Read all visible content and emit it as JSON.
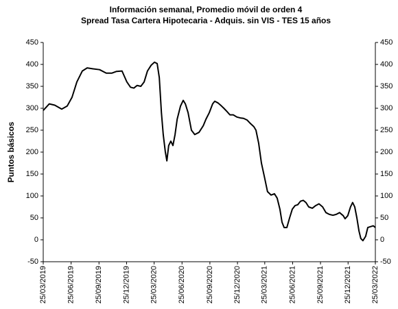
{
  "chart_data": {
    "type": "line",
    "title": "Información semanal, Promedio móvil de orden 4",
    "subtitle": "Spread Tasa Cartera Hipotecaria - Adquis. sin VIS -  TES 15 años",
    "ylabel": "Puntos básicos",
    "ylim": [
      -50,
      450
    ],
    "yticks": [
      -50,
      0,
      50,
      100,
      150,
      200,
      250,
      300,
      350,
      400,
      450
    ],
    "y2lim": [
      -50,
      450
    ],
    "y2ticks": [
      -50,
      0,
      50,
      100,
      150,
      200,
      250,
      300,
      350,
      400,
      450
    ],
    "xlim": [
      "2019-03-25",
      "2022-03-25"
    ],
    "xticks": [
      {
        "value": "2019-03-25",
        "label": "25/03/2019"
      },
      {
        "value": "2019-06-25",
        "label": "25/06/2019"
      },
      {
        "value": "2019-09-25",
        "label": "25/09/2019"
      },
      {
        "value": "2019-12-25",
        "label": "25/12/2019"
      },
      {
        "value": "2020-03-25",
        "label": "25/03/2020"
      },
      {
        "value": "2020-06-25",
        "label": "25/06/2020"
      },
      {
        "value": "2020-09-25",
        "label": "25/09/2020"
      },
      {
        "value": "2020-12-25",
        "label": "25/12/2020"
      },
      {
        "value": "2021-03-25",
        "label": "25/03/2021"
      },
      {
        "value": "2021-06-25",
        "label": "25/06/2021"
      },
      {
        "value": "2021-09-25",
        "label": "25/09/2021"
      },
      {
        "value": "2021-12-25",
        "label": "25/12/2021"
      },
      {
        "value": "2022-03-25",
        "label": "25/03/2022"
      }
    ],
    "x": [
      "2019-03-25",
      "2019-04-14",
      "2019-05-02",
      "2019-05-25",
      "2019-06-12",
      "2019-06-28",
      "2019-07-14",
      "2019-08-01",
      "2019-08-17",
      "2019-09-04",
      "2019-09-27",
      "2019-10-19",
      "2019-11-06",
      "2019-11-22",
      "2019-12-10",
      "2019-12-26",
      "2020-01-07",
      "2020-01-18",
      "2020-01-29",
      "2020-02-10",
      "2020-02-21",
      "2020-03-03",
      "2020-03-15",
      "2020-03-26",
      "2020-04-04",
      "2020-04-11",
      "2020-04-18",
      "2020-04-24",
      "2020-05-01",
      "2020-05-06",
      "2020-05-12",
      "2020-05-19",
      "2020-05-26",
      "2020-06-02",
      "2020-06-09",
      "2020-06-20",
      "2020-06-29",
      "2020-07-06",
      "2020-07-15",
      "2020-07-26",
      "2020-08-06",
      "2020-08-20",
      "2020-09-03",
      "2020-09-12",
      "2020-09-23",
      "2020-10-04",
      "2020-10-11",
      "2020-10-22",
      "2020-11-01",
      "2020-11-10",
      "2020-11-21",
      "2020-11-30",
      "2020-12-11",
      "2020-12-23",
      "2021-01-03",
      "2021-01-14",
      "2021-01-26",
      "2021-02-06",
      "2021-02-17",
      "2021-02-24",
      "2021-03-05",
      "2021-03-14",
      "2021-03-25",
      "2021-04-03",
      "2021-04-15",
      "2021-04-26",
      "2021-05-05",
      "2021-05-14",
      "2021-05-21",
      "2021-05-28",
      "2021-06-06",
      "2021-06-15",
      "2021-06-24",
      "2021-07-03",
      "2021-07-12",
      "2021-07-21",
      "2021-07-30",
      "2021-08-08",
      "2021-08-17",
      "2021-08-29",
      "2021-09-09",
      "2021-09-20",
      "2021-10-02",
      "2021-10-13",
      "2021-10-24",
      "2021-11-05",
      "2021-11-16",
      "2021-11-27",
      "2021-12-09",
      "2021-12-15",
      "2021-12-24",
      "2022-01-02",
      "2022-01-09",
      "2022-01-16",
      "2022-01-23",
      "2022-01-30",
      "2022-02-05",
      "2022-02-12",
      "2022-02-21",
      "2022-02-28",
      "2022-03-09",
      "2022-03-18",
      "2022-03-25"
    ],
    "series": [
      {
        "name": "Spread",
        "color": "#000000",
        "values": [
          295,
          310,
          307,
          298,
          305,
          325,
          360,
          385,
          392,
          390,
          388,
          380,
          380,
          384,
          385,
          360,
          348,
          346,
          352,
          350,
          360,
          385,
          398,
          405,
          402,
          370,
          290,
          240,
          200,
          180,
          215,
          225,
          215,
          240,
          275,
          305,
          318,
          310,
          290,
          250,
          240,
          245,
          260,
          275,
          290,
          310,
          316,
          312,
          306,
          300,
          292,
          285,
          285,
          280,
          278,
          277,
          273,
          265,
          258,
          250,
          220,
          175,
          140,
          110,
          102,
          105,
          95,
          70,
          40,
          28,
          28,
          50,
          70,
          78,
          80,
          88,
          90,
          85,
          75,
          72,
          78,
          82,
          75,
          62,
          58,
          56,
          58,
          62,
          55,
          48,
          55,
          75,
          85,
          75,
          50,
          20,
          3,
          -2,
          8,
          28,
          30,
          32,
          28
        ]
      }
    ]
  }
}
